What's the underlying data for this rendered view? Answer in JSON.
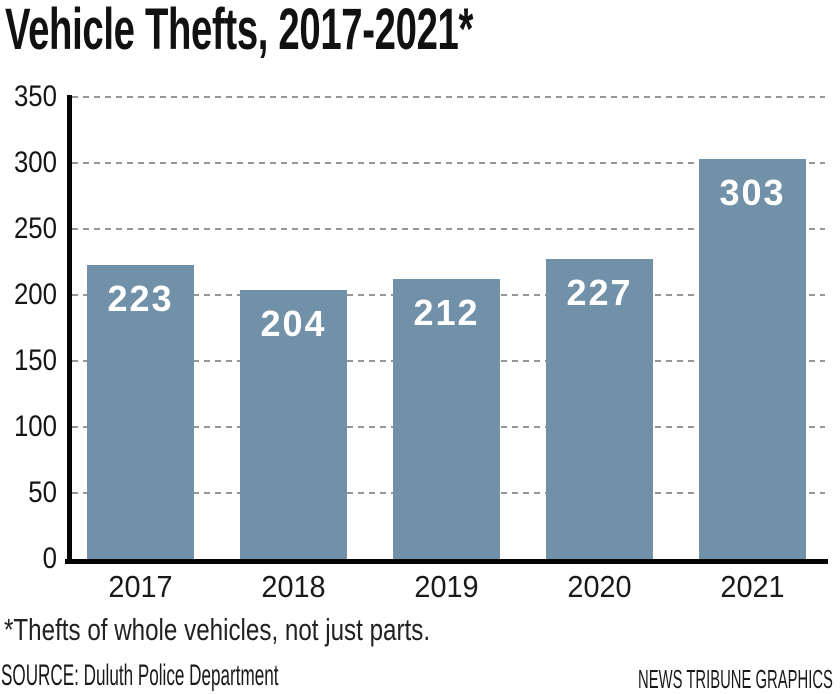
{
  "title": "Vehicle Thefts, 2017-2021*",
  "footnote": "*Thefts of whole vehicles, not just parts.",
  "source": "SOURCE: Duluth Police Department",
  "credit": "NEWS TRIBUNE GRAPHICS",
  "colors": {
    "bar": "#7191a8",
    "axis": "#050505",
    "gridline": "#979797",
    "bar_value_text": "#ffffff",
    "title_text": "#111111",
    "tick_text": "#161616"
  },
  "chart_data": {
    "type": "bar",
    "categories": [
      "2017",
      "2018",
      "2019",
      "2020",
      "2021"
    ],
    "values": [
      223,
      204,
      212,
      227,
      303
    ],
    "bar_value_labels": [
      "223",
      "204",
      "212",
      "227",
      "303"
    ],
    "title": "Vehicle Thefts, 2017-2021*",
    "xlabel": "",
    "ylabel": "",
    "ylim": [
      0,
      350
    ],
    "yticks": [
      0,
      50,
      100,
      150,
      200,
      250,
      300,
      350
    ],
    "grid": "horizontal-dashed",
    "gridlines_behind_bars": true,
    "value_label_position": "inside-top",
    "legend": "none"
  }
}
